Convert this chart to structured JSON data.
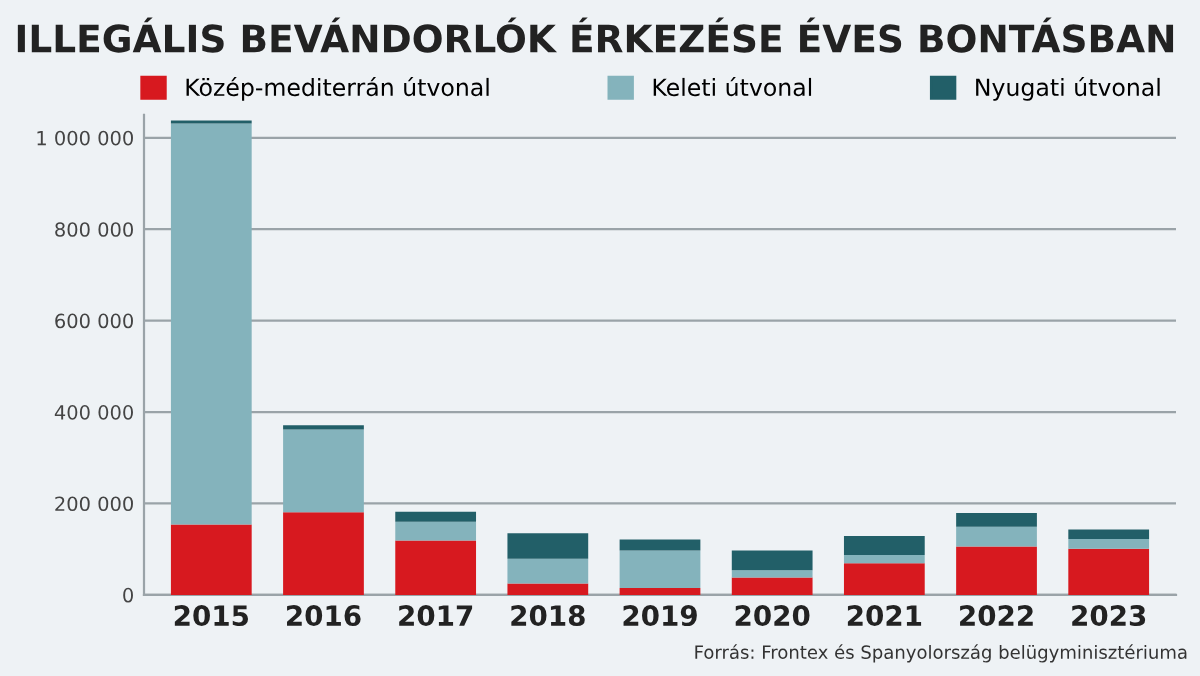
{
  "chart_data": {
    "type": "bar",
    "title": "ILLEGÁLIS BEVÁNDORLÓK ÉRKEZÉSE ÉVES BONTÁSBAN",
    "categories": [
      "2015",
      "2016",
      "2017",
      "2018",
      "2019",
      "2020",
      "2021",
      "2022",
      "2023"
    ],
    "stacked": true,
    "series": [
      {
        "name": "Közép-mediterrán útvonal",
        "color": "#d7191f",
        "values": [
          154000,
          181000,
          119000,
          25000,
          15000,
          38000,
          69000,
          106000,
          101000
        ]
      },
      {
        "name": "Keleti útvonal",
        "color": "#84b3bc",
        "values": [
          877000,
          181000,
          41000,
          54000,
          82000,
          16000,
          18000,
          43000,
          21000
        ]
      },
      {
        "name": "Nyugati útvonal",
        "color": "#225f68",
        "values": [
          7000,
          9000,
          22000,
          56000,
          24000,
          43000,
          42000,
          30000,
          21000
        ]
      }
    ],
    "ylim": [
      0,
      1050000
    ],
    "yticks": [
      0,
      {
        "value": 200000,
        "label": "200 000"
      },
      {
        "value": 400000,
        "label": "400 000"
      },
      {
        "value": 600000,
        "label": "600 000"
      },
      {
        "value": 800000,
        "label": "800 000"
      },
      {
        "value": 1000000,
        "label": "1 000 000"
      }
    ],
    "grid": "y",
    "legend": "top",
    "annotations": [
      "Forrás: Frontex és Spanyolország belügyminisztériuma"
    ]
  }
}
